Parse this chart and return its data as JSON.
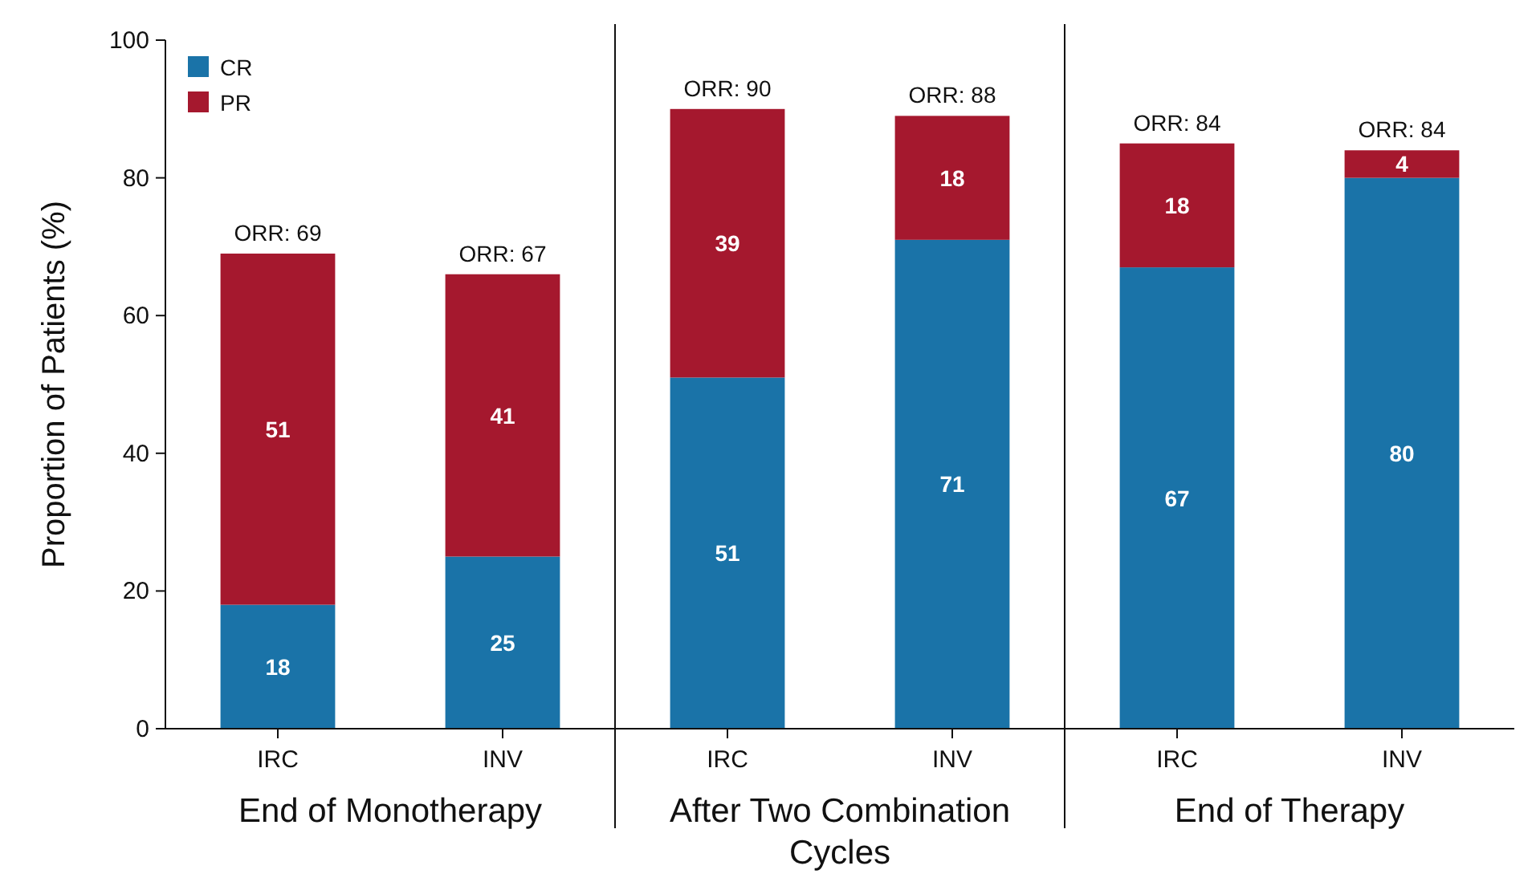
{
  "chart_data": {
    "type": "bar",
    "stacked": true,
    "ylabel": "Proportion of Patients (%)",
    "categories": [
      "IRC",
      "INV",
      "IRC",
      "INV",
      "IRC",
      "INV"
    ],
    "series": [
      {
        "name": "CR",
        "color": "#1a73a8",
        "values": [
          18,
          25,
          51,
          71,
          67,
          80
        ]
      },
      {
        "name": "PR",
        "color": "#a5182e",
        "values": [
          51,
          41,
          39,
          18,
          18,
          4
        ]
      }
    ],
    "totals": [
      "ORR: 69",
      "ORR: 67",
      "ORR: 90",
      "ORR: 88",
      "ORR: 84",
      "ORR: 84"
    ],
    "data_labels": true,
    "ylim": [
      0,
      100
    ],
    "yticks": [
      0,
      20,
      40,
      60,
      80,
      100
    ],
    "legend": "top left",
    "grid": false,
    "annotations": [
      "End of Monotherapy",
      "After Two Combination Cycles",
      "End of Therapy"
    ]
  }
}
